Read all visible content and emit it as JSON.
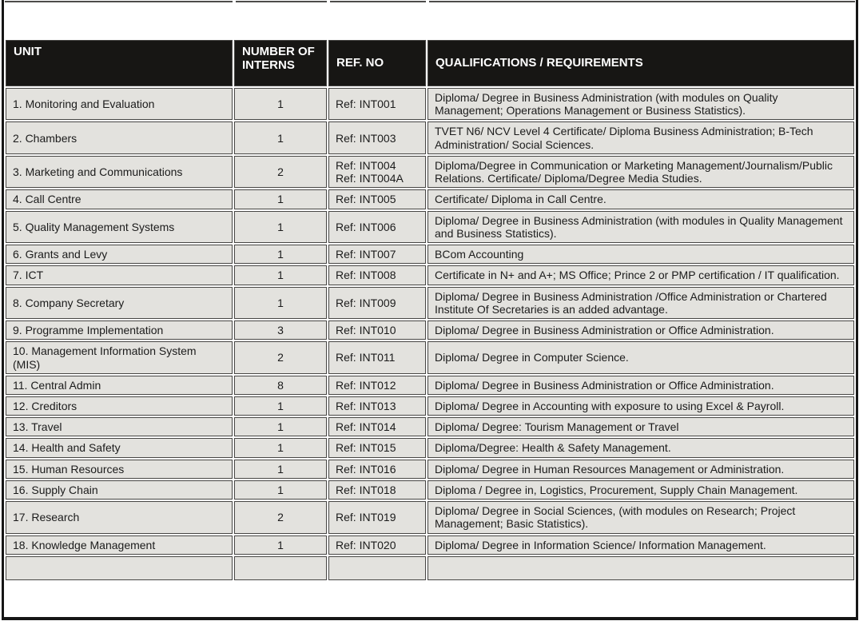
{
  "table": {
    "columns": [
      "UNIT",
      "NUMBER OF INTERNS",
      "REF. NO",
      "QUALIFICATIONS / REQUIREMENTS"
    ],
    "rows": [
      {
        "unit": "1. Monitoring and Evaluation",
        "interns": "1",
        "ref": [
          "Ref: INT001"
        ],
        "qualifications": "Diploma/ Degree in Business Administration (with modules on Quality Management; Operations Management or Business Statistics)."
      },
      {
        "unit": "2. Chambers",
        "interns": "1",
        "ref": [
          "Ref: INT003"
        ],
        "qualifications": "TVET N6/ NCV Level 4 Certificate/ Diploma Business Administration; B-Tech Administration/ Social Sciences."
      },
      {
        "unit": "3. Marketing and Communications",
        "interns": "2",
        "ref": [
          "Ref: INT004",
          "Ref: INT004A"
        ],
        "qualifications": "Diploma/Degree in Communication or Marketing Management/Journalism/Public Relations. Certificate/ Diploma/Degree Media Studies."
      },
      {
        "unit": "4. Call Centre",
        "interns": "1",
        "ref": [
          "Ref: INT005"
        ],
        "qualifications": "Certificate/ Diploma in Call Centre."
      },
      {
        "unit": "5. Quality Management Systems",
        "interns": "1",
        "ref": [
          "Ref: INT006"
        ],
        "qualifications": "Diploma/ Degree in Business Administration (with modules in Quality Management and Business Statistics)."
      },
      {
        "unit": "6. Grants and Levy",
        "interns": "1",
        "ref": [
          "Ref: INT007"
        ],
        "qualifications": "BCom Accounting"
      },
      {
        "unit": "7. ICT",
        "interns": "1",
        "ref": [
          "Ref: INT008"
        ],
        "qualifications": "Certificate in N+ and A+; MS Office; Prince 2 or PMP certification / IT qualification."
      },
      {
        "unit": "8. Company Secretary",
        "interns": "1",
        "ref": [
          "Ref: INT009"
        ],
        "qualifications": "Diploma/ Degree in Business Administration /Office Administration or Chartered Institute Of Secretaries is an added advantage."
      },
      {
        "unit": "9. Programme Implementation",
        "interns": "3",
        "ref": [
          "Ref: INT010"
        ],
        "qualifications": "Diploma/ Degree in Business Administration or Office Administration."
      },
      {
        "unit": "10. Management Information System (MIS)",
        "interns": "2",
        "ref": [
          "Ref: INT011"
        ],
        "qualifications": "Diploma/ Degree in Computer Science."
      },
      {
        "unit": "11. Central Admin",
        "interns": "8",
        "ref": [
          "Ref: INT012"
        ],
        "qualifications": "Diploma/ Degree in Business Administration or Office Administration."
      },
      {
        "unit": "12. Creditors",
        "interns": "1",
        "ref": [
          "Ref: INT013"
        ],
        "qualifications": "Diploma/ Degree in Accounting with exposure to using Excel & Payroll."
      },
      {
        "unit": "13. Travel",
        "interns": "1",
        "ref": [
          "Ref: INT014"
        ],
        "qualifications": "Diploma/ Degree: Tourism Management or Travel"
      },
      {
        "unit": "14. Health and Safety",
        "interns": "1",
        "ref": [
          "Ref: INT015"
        ],
        "qualifications": "Diploma/Degree: Health & Safety Management."
      },
      {
        "unit": "15. Human Resources",
        "interns": "1",
        "ref": [
          "Ref: INT016"
        ],
        "qualifications": "Diploma/ Degree in Human Resources Management or Administration."
      },
      {
        "unit": "16. Supply Chain",
        "interns": "1",
        "ref": [
          "Ref: INT018"
        ],
        "qualifications": "Diploma / Degree in, Logistics, Procurement, Supply Chain Management."
      },
      {
        "unit": "17. Research",
        "interns": "2",
        "ref": [
          "Ref: INT019"
        ],
        "qualifications": "Diploma/ Degree in Social Sciences, (with modules on Research; Project Management; Basic Statistics)."
      },
      {
        "unit": "18. Knowledge Management",
        "interns": "1",
        "ref": [
          "Ref: INT020"
        ],
        "qualifications": "Diploma/ Degree in Information Science/ Information Management."
      }
    ],
    "has_empty_trailing_row": true,
    "colors": {
      "header_bg": "#171614",
      "header_text": "#ffffff",
      "cell_bg": "#e3e2de",
      "grid_line": "#474644",
      "outer_border": "#161616",
      "page_bg": "#ffffff"
    }
  }
}
